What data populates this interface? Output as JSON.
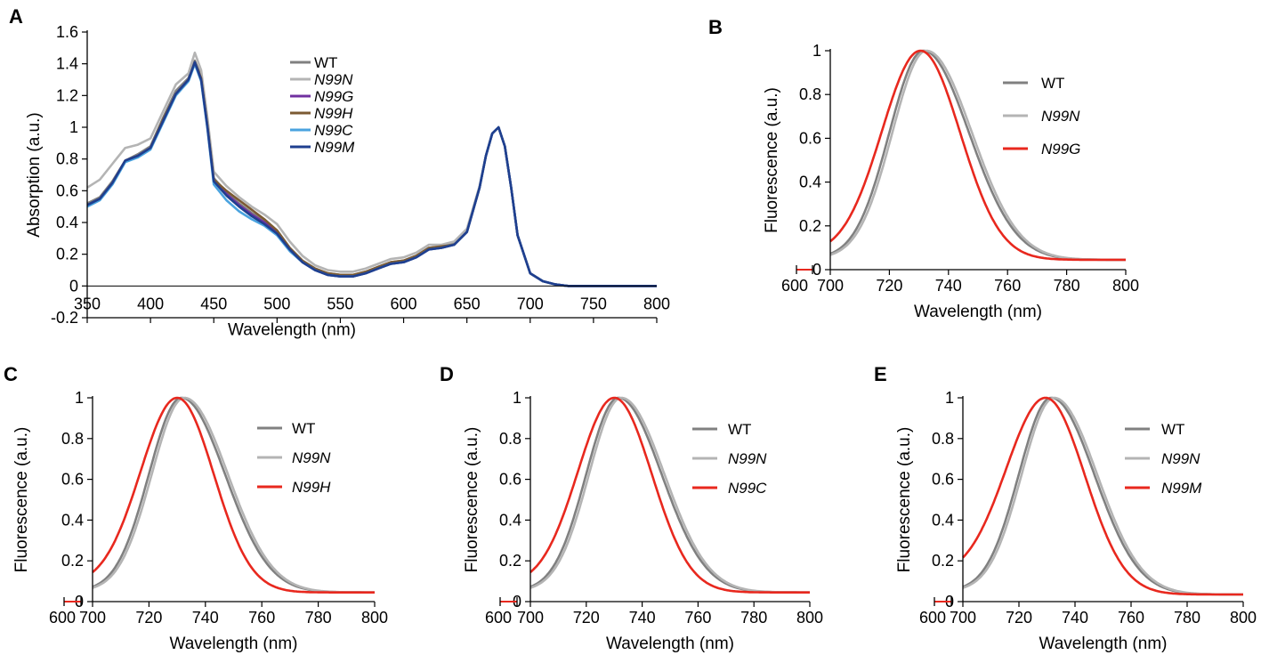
{
  "chart_data": [
    {
      "panel": "A",
      "type": "line",
      "title": "",
      "xlabel": "Wavelength (nm)",
      "ylabel": "Absorption (a.u.)",
      "xlim": [
        350,
        800
      ],
      "ylim": [
        -0.2,
        1.6
      ],
      "xticks": [
        350,
        400,
        450,
        500,
        550,
        600,
        650,
        700,
        750,
        800
      ],
      "xtick_labels": [
        "350",
        "400",
        "450",
        "500",
        "550",
        "600",
        "650",
        "700",
        "750",
        "800"
      ],
      "yticks": [
        -0.2,
        0,
        0.2,
        0.4,
        0.6,
        0.8,
        1,
        1.2,
        1.4,
        1.6
      ],
      "ytick_labels": [
        "-0.2",
        "0",
        "0.2",
        "0.4",
        "0.6",
        "0.8",
        "1",
        "1.2",
        "1.4",
        "1.6"
      ],
      "legend_position": "top-center",
      "series": [
        {
          "name": "WT",
          "italic": false,
          "color": "#808080",
          "x": [
            350,
            360,
            370,
            380,
            390,
            400,
            410,
            420,
            430,
            435,
            440,
            445,
            450,
            460,
            470,
            480,
            490,
            500,
            510,
            520,
            530,
            540,
            550,
            560,
            570,
            580,
            590,
            600,
            610,
            620,
            630,
            640,
            650,
            660,
            665,
            670,
            675,
            680,
            685,
            690,
            700,
            710,
            720,
            730,
            750,
            800
          ],
          "y": [
            0.52,
            0.56,
            0.66,
            0.79,
            0.83,
            0.88,
            1.06,
            1.23,
            1.31,
            1.42,
            1.32,
            1.02,
            0.68,
            0.59,
            0.52,
            0.46,
            0.41,
            0.35,
            0.24,
            0.16,
            0.11,
            0.08,
            0.07,
            0.07,
            0.09,
            0.12,
            0.15,
            0.16,
            0.19,
            0.24,
            0.25,
            0.27,
            0.35,
            0.62,
            0.82,
            0.96,
            1.0,
            0.88,
            0.62,
            0.32,
            0.08,
            0.03,
            0.01,
            0.0,
            0.0,
            0.0
          ]
        },
        {
          "name": "N99N",
          "italic": true,
          "color": "#b4b4b4",
          "x": [
            350,
            360,
            370,
            380,
            390,
            400,
            410,
            420,
            430,
            435,
            440,
            445,
            450,
            460,
            470,
            480,
            490,
            500,
            510,
            520,
            530,
            540,
            550,
            560,
            570,
            580,
            590,
            600,
            610,
            620,
            630,
            640,
            650,
            660,
            665,
            670,
            675,
            680,
            685,
            690,
            700,
            710,
            720,
            730,
            750,
            800
          ],
          "y": [
            0.62,
            0.67,
            0.77,
            0.87,
            0.89,
            0.93,
            1.1,
            1.27,
            1.34,
            1.47,
            1.36,
            1.06,
            0.72,
            0.63,
            0.56,
            0.5,
            0.45,
            0.39,
            0.28,
            0.19,
            0.13,
            0.1,
            0.09,
            0.09,
            0.11,
            0.14,
            0.17,
            0.18,
            0.21,
            0.26,
            0.26,
            0.28,
            0.36,
            0.63,
            0.82,
            0.96,
            1.0,
            0.88,
            0.62,
            0.32,
            0.08,
            0.03,
            0.01,
            0.0,
            0.0,
            0.0
          ]
        },
        {
          "name": "N99G",
          "italic": true,
          "color": "#7030a0",
          "x": [
            350,
            360,
            370,
            380,
            390,
            400,
            410,
            420,
            430,
            435,
            440,
            445,
            450,
            460,
            470,
            480,
            490,
            500,
            510,
            520,
            530,
            540,
            550,
            560,
            570,
            580,
            590,
            600,
            610,
            620,
            630,
            640,
            650,
            660,
            665,
            670,
            675,
            680,
            685,
            690,
            700,
            710,
            720,
            730,
            750,
            800
          ],
          "y": [
            0.51,
            0.55,
            0.65,
            0.79,
            0.82,
            0.87,
            1.04,
            1.21,
            1.3,
            1.4,
            1.3,
            1.0,
            0.66,
            0.58,
            0.51,
            0.45,
            0.4,
            0.34,
            0.23,
            0.15,
            0.1,
            0.07,
            0.06,
            0.06,
            0.08,
            0.11,
            0.14,
            0.15,
            0.18,
            0.23,
            0.24,
            0.26,
            0.34,
            0.62,
            0.82,
            0.96,
            1.0,
            0.88,
            0.62,
            0.32,
            0.08,
            0.03,
            0.01,
            0.0,
            0.0,
            0.0
          ]
        },
        {
          "name": "N99H",
          "italic": true,
          "color": "#7b5a32",
          "x": [
            350,
            360,
            370,
            380,
            390,
            400,
            410,
            420,
            430,
            435,
            440,
            445,
            450,
            460,
            470,
            480,
            490,
            500,
            510,
            520,
            530,
            540,
            550,
            560,
            570,
            580,
            590,
            600,
            610,
            620,
            630,
            640,
            650,
            660,
            665,
            670,
            675,
            680,
            685,
            690,
            700,
            710,
            720,
            730,
            750,
            800
          ],
          "y": [
            0.51,
            0.55,
            0.65,
            0.79,
            0.82,
            0.87,
            1.05,
            1.21,
            1.3,
            1.41,
            1.31,
            1.01,
            0.67,
            0.6,
            0.54,
            0.48,
            0.42,
            0.35,
            0.24,
            0.16,
            0.11,
            0.08,
            0.07,
            0.07,
            0.09,
            0.12,
            0.15,
            0.16,
            0.19,
            0.24,
            0.25,
            0.26,
            0.34,
            0.62,
            0.82,
            0.96,
            1.0,
            0.88,
            0.62,
            0.32,
            0.08,
            0.03,
            0.01,
            0.0,
            0.0,
            0.0
          ]
        },
        {
          "name": "N99C",
          "italic": true,
          "color": "#4aa3df",
          "x": [
            350,
            360,
            370,
            380,
            390,
            400,
            410,
            420,
            430,
            435,
            440,
            445,
            450,
            460,
            470,
            480,
            490,
            500,
            510,
            520,
            530,
            540,
            550,
            560,
            570,
            580,
            590,
            600,
            610,
            620,
            630,
            640,
            650,
            660,
            665,
            670,
            675,
            680,
            685,
            690,
            700,
            710,
            720,
            730,
            750,
            800
          ],
          "y": [
            0.5,
            0.54,
            0.64,
            0.78,
            0.81,
            0.86,
            1.03,
            1.2,
            1.29,
            1.4,
            1.29,
            0.99,
            0.64,
            0.54,
            0.47,
            0.42,
            0.38,
            0.32,
            0.22,
            0.15,
            0.1,
            0.07,
            0.06,
            0.06,
            0.08,
            0.11,
            0.14,
            0.15,
            0.18,
            0.23,
            0.24,
            0.26,
            0.34,
            0.62,
            0.82,
            0.96,
            1.0,
            0.88,
            0.62,
            0.32,
            0.08,
            0.03,
            0.01,
            0.0,
            0.0,
            0.0
          ]
        },
        {
          "name": "N99M",
          "italic": true,
          "color": "#1f3f8f",
          "x": [
            350,
            360,
            370,
            380,
            390,
            400,
            410,
            420,
            430,
            435,
            440,
            445,
            450,
            460,
            470,
            480,
            490,
            500,
            510,
            520,
            530,
            540,
            550,
            560,
            570,
            580,
            590,
            600,
            610,
            620,
            630,
            640,
            650,
            660,
            665,
            670,
            675,
            680,
            685,
            690,
            700,
            710,
            720,
            730,
            750,
            800
          ],
          "y": [
            0.51,
            0.55,
            0.65,
            0.79,
            0.82,
            0.87,
            1.04,
            1.21,
            1.3,
            1.41,
            1.3,
            1.0,
            0.66,
            0.57,
            0.5,
            0.44,
            0.39,
            0.33,
            0.23,
            0.15,
            0.1,
            0.07,
            0.06,
            0.06,
            0.08,
            0.11,
            0.14,
            0.15,
            0.18,
            0.23,
            0.24,
            0.26,
            0.34,
            0.62,
            0.82,
            0.96,
            1.0,
            0.88,
            0.62,
            0.32,
            0.08,
            0.03,
            0.01,
            0.0,
            0.0,
            0.0
          ]
        }
      ]
    },
    {
      "panel": "B",
      "type": "line",
      "title": "",
      "xlabel": "Wavelength (nm)",
      "ylabel": "Fluorescence (a.u.)",
      "xlim": [
        700,
        800
      ],
      "xbreak_label": "600",
      "ylim": [
        0,
        1
      ],
      "xticks": [
        700,
        720,
        740,
        760,
        780,
        800
      ],
      "xtick_labels": [
        "700",
        "720",
        "740",
        "760",
        "780",
        "800"
      ],
      "yticks": [
        0,
        0.2,
        0.4,
        0.6,
        0.8,
        1
      ],
      "ytick_labels": [
        "0",
        "0.2",
        "0.4",
        "0.6",
        "0.8",
        "1"
      ],
      "legend_position": "right",
      "series": [
        {
          "name": "WT",
          "italic": false,
          "color": "#808080",
          "peak": 731.5,
          "width_left": 11.5,
          "width_right": 15.5,
          "baseline_left": 0.05,
          "baseline_right": 0.045
        },
        {
          "name": "N99N",
          "italic": true,
          "color": "#b4b4b4",
          "peak": 732.5,
          "width_left": 11.5,
          "width_right": 15.5,
          "baseline_left": 0.05,
          "baseline_right": 0.045
        },
        {
          "name": "N99G",
          "italic": true,
          "color": "#e8281e",
          "peak": 730.5,
          "width_left": 13.0,
          "width_right": 13.5,
          "baseline_left": 0.07,
          "baseline_right": 0.045
        }
      ]
    },
    {
      "panel": "C",
      "type": "line",
      "title": "",
      "xlabel": "Wavelength (nm)",
      "ylabel": "Fluorescence (a.u.)",
      "xlim": [
        700,
        800
      ],
      "xbreak_label": "600",
      "ylim": [
        0,
        1
      ],
      "xticks": [
        700,
        720,
        740,
        760,
        780,
        800
      ],
      "xtick_labels": [
        "700",
        "720",
        "740",
        "760",
        "780",
        "800"
      ],
      "yticks": [
        0,
        0.2,
        0.4,
        0.6,
        0.8,
        1
      ],
      "ytick_labels": [
        "0",
        "0.2",
        "0.4",
        "0.6",
        "0.8",
        "1"
      ],
      "legend_position": "right",
      "series": [
        {
          "name": "WT",
          "italic": false,
          "color": "#808080",
          "peak": 731.5,
          "width_left": 11.5,
          "width_right": 15.5,
          "baseline_left": 0.05,
          "baseline_right": 0.045
        },
        {
          "name": "N99N",
          "italic": true,
          "color": "#b4b4b4",
          "peak": 732.5,
          "width_left": 11.5,
          "width_right": 15.5,
          "baseline_left": 0.05,
          "baseline_right": 0.045
        },
        {
          "name": "N99H",
          "italic": true,
          "color": "#e8281e",
          "peak": 730.0,
          "width_left": 13.0,
          "width_right": 13.0,
          "baseline_left": 0.08,
          "baseline_right": 0.045
        }
      ]
    },
    {
      "panel": "D",
      "type": "line",
      "title": "",
      "xlabel": "Wavelength (nm)",
      "ylabel": "Fluorescence (a.u.)",
      "xlim": [
        700,
        800
      ],
      "xbreak_label": "600",
      "ylim": [
        0,
        1
      ],
      "xticks": [
        700,
        720,
        740,
        760,
        780,
        800
      ],
      "xtick_labels": [
        "700",
        "720",
        "740",
        "760",
        "780",
        "800"
      ],
      "yticks": [
        0,
        0.2,
        0.4,
        0.6,
        0.8,
        1
      ],
      "ytick_labels": [
        "0",
        "0.2",
        "0.4",
        "0.6",
        "0.8",
        "1"
      ],
      "legend_position": "right",
      "series": [
        {
          "name": "WT",
          "italic": false,
          "color": "#808080",
          "peak": 731.5,
          "width_left": 11.5,
          "width_right": 15.5,
          "baseline_left": 0.05,
          "baseline_right": 0.045
        },
        {
          "name": "N99N",
          "italic": true,
          "color": "#b4b4b4",
          "peak": 732.5,
          "width_left": 11.5,
          "width_right": 15.5,
          "baseline_left": 0.05,
          "baseline_right": 0.045
        },
        {
          "name": "N99C",
          "italic": true,
          "color": "#e8281e",
          "peak": 730.0,
          "width_left": 13.0,
          "width_right": 13.5,
          "baseline_left": 0.08,
          "baseline_right": 0.045
        }
      ]
    },
    {
      "panel": "E",
      "type": "line",
      "title": "",
      "xlabel": "Wavelength (nm)",
      "ylabel": "Fluorescence (a.u.)",
      "xlim": [
        700,
        800
      ],
      "xbreak_label": "600",
      "ylim": [
        0,
        1
      ],
      "xticks": [
        700,
        720,
        740,
        760,
        780,
        800
      ],
      "xtick_labels": [
        "700",
        "720",
        "740",
        "760",
        "780",
        "800"
      ],
      "yticks": [
        0,
        0.2,
        0.4,
        0.6,
        0.8,
        1
      ],
      "ytick_labels": [
        "0",
        "0.2",
        "0.4",
        "0.6",
        "0.8",
        "1"
      ],
      "legend_position": "right",
      "series": [
        {
          "name": "WT",
          "italic": false,
          "color": "#808080",
          "peak": 731.5,
          "width_left": 11.5,
          "width_right": 15.5,
          "baseline_left": 0.05,
          "baseline_right": 0.035
        },
        {
          "name": "N99N",
          "italic": true,
          "color": "#b4b4b4",
          "peak": 732.5,
          "width_left": 11.5,
          "width_right": 15.5,
          "baseline_left": 0.05,
          "baseline_right": 0.035
        },
        {
          "name": "N99M",
          "italic": true,
          "color": "#e8281e",
          "peak": 729.5,
          "width_left": 14.0,
          "width_right": 14.0,
          "baseline_left": 0.12,
          "baseline_right": 0.035
        }
      ]
    }
  ]
}
